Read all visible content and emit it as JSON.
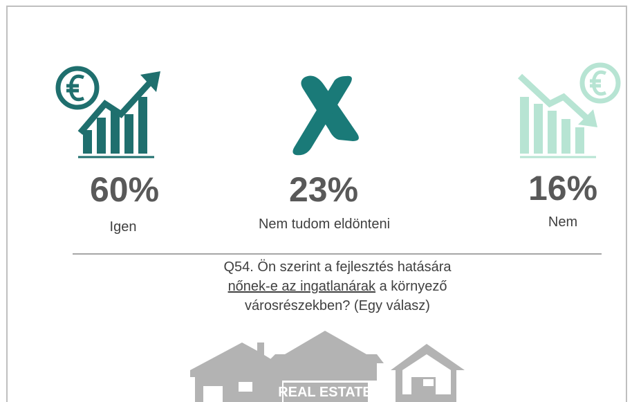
{
  "items": [
    {
      "value": "60%",
      "label": "Igen"
    },
    {
      "value": "23%",
      "label": "Nem tudom eldönteni"
    },
    {
      "value": "16%",
      "label": "Nem"
    }
  ],
  "question": {
    "line1": "Q54. Ön szerint a fejlesztés hatására",
    "underlined": "nőnek-e az ingatlanárak",
    "line2_rest": " a környező",
    "line3": "városrészekben? (Egy válasz)"
  },
  "badge": "REAL ESTATE"
}
